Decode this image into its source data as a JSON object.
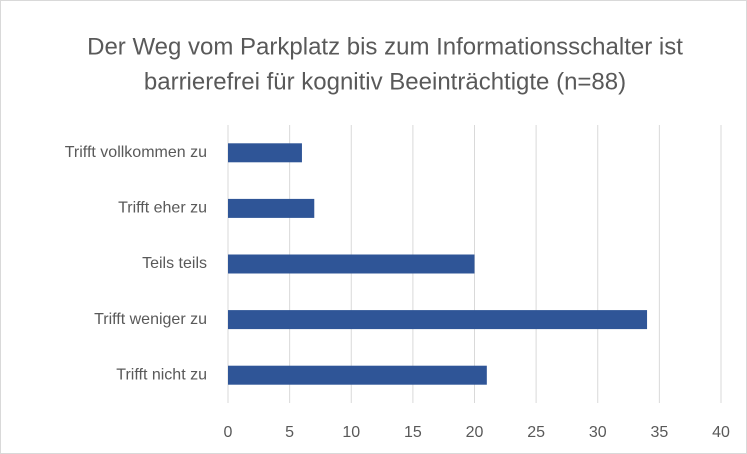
{
  "chart_data": {
    "type": "bar",
    "orientation": "horizontal",
    "title": [
      "Der Weg vom Parkplatz bis zum Informationsschalter ist",
      "barrierefrei für kognitiv Beeinträchtigte (n=88)"
    ],
    "categories": [
      "Trifft vollkommen zu",
      "Trifft eher zu",
      "Teils teils",
      "Trifft weniger zu",
      "Trifft nicht zu"
    ],
    "values": [
      6,
      7,
      20,
      34,
      21
    ],
    "color": "#2f5597",
    "xlim": [
      0,
      40
    ],
    "xticks": [
      0,
      5,
      10,
      15,
      20,
      25,
      30,
      35,
      40
    ],
    "grid": true
  }
}
